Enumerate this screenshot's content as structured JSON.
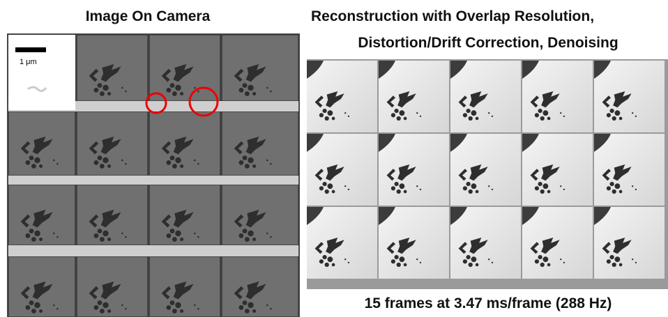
{
  "left_panel": {
    "title": "Image On Camera",
    "scale_label": "1 μm"
  },
  "right_panel": {
    "title_lines": [
      "Reconstruction with Overlap Resolution,",
      "Distortion/Drift Correction, Denoising"
    ],
    "caption": "15 frames at 3.47 ms/frame (288 Hz)"
  }
}
